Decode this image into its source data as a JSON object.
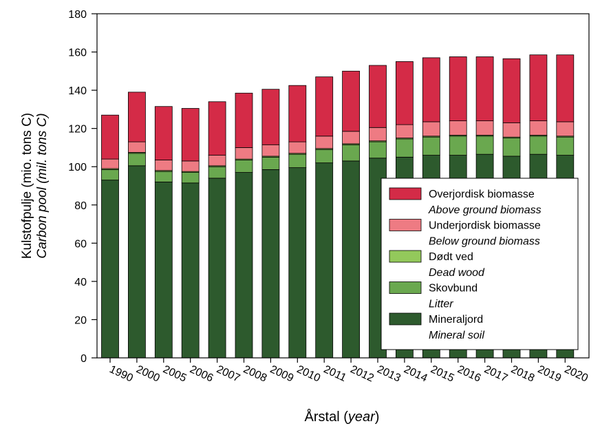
{
  "chart_data": {
    "type": "bar",
    "stacked": true,
    "categories": [
      "1990",
      "2000",
      "2005",
      "2006",
      "2007",
      "2008",
      "2009",
      "2010",
      "2011",
      "2012",
      "2013",
      "2014",
      "2015",
      "2016",
      "2017",
      "2018",
      "2019",
      "2020"
    ],
    "series": [
      {
        "name": "Mineraljord",
        "name_en": "Mineral soil",
        "color": "#2d5a2d",
        "values": [
          93,
          100.5,
          92,
          91.5,
          94,
          97,
          98.5,
          99.5,
          102,
          103,
          104.5,
          105,
          106,
          106,
          106.5,
          105.5,
          106.5,
          106
        ]
      },
      {
        "name": "Skovbund",
        "name_en": "Litter",
        "color": "#6aa84f",
        "values": [
          5.5,
          6.5,
          5.5,
          5.5,
          6,
          6.5,
          6.5,
          7,
          7,
          8.5,
          8.5,
          9.5,
          9.5,
          10,
          9.5,
          9.5,
          9.5,
          9.5
        ]
      },
      {
        "name": "Dødt ved",
        "name_en": "Dead wood",
        "color": "#93c95b",
        "values": [
          0.5,
          0.5,
          0.5,
          0.5,
          0.5,
          0.5,
          0.5,
          0.5,
          0.5,
          0.5,
          0.5,
          0.5,
          0.5,
          0.5,
          0.5,
          0.5,
          0.5,
          0.5
        ]
      },
      {
        "name": "Underjordisk biomasse",
        "name_en": "Below ground biomass",
        "color": "#ee7b83",
        "values": [
          5,
          5.5,
          5.5,
          5.5,
          5.5,
          6,
          6,
          6,
          6.5,
          6.5,
          7,
          7,
          7.5,
          7.5,
          7.5,
          7.5,
          7.5,
          7.5
        ]
      },
      {
        "name": "Overjordisk biomasse",
        "name_en": "Above ground biomass",
        "color": "#d42b47",
        "values": [
          23,
          26,
          28,
          27.5,
          28,
          28.5,
          29,
          29.5,
          31,
          31.5,
          32.5,
          33,
          33.5,
          33.5,
          33.5,
          33.5,
          34.5,
          35
        ]
      }
    ],
    "legend_order": [
      "Overjordisk biomasse",
      "Underjordisk biomasse",
      "Dødt ved",
      "Skovbund",
      "Mineraljord"
    ],
    "ylabel": "Kulstofpulje (mio. tons C)",
    "ylabel_en": "Carbon pool (mil. tons C)",
    "xlabel": "Årstal",
    "xlabel_en": "year",
    "ylim": [
      0,
      180
    ],
    "yticks": [
      0,
      20,
      40,
      60,
      80,
      100,
      120,
      140,
      160,
      180
    ],
    "legend_position": "lower-right",
    "grid": false
  }
}
